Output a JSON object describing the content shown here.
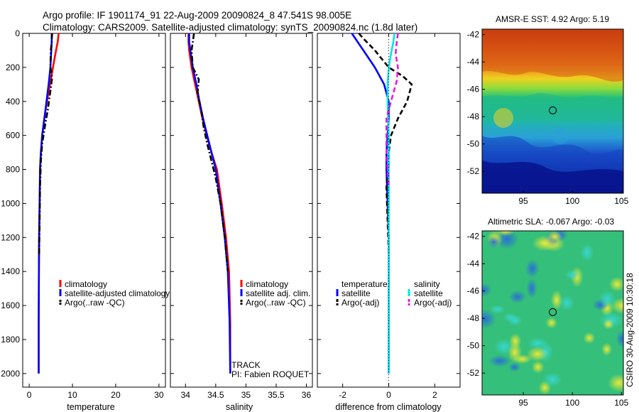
{
  "figure": {
    "title_line1": "Argo profile: IF 1901174_91 22-Aug-2009 20090824_8 47.541S 98.005E",
    "title_line2": "Climatology: CARS2009. Satellite-adjusted climatology: synTS_20090824.nc (1.8d later)",
    "side_label": "CSIRO 30-Aug-2009 10:30:18",
    "track_label": "TRACK",
    "pi_label": "PI: Fabien ROQUET"
  },
  "colors": {
    "climatology": "#ff0000",
    "satellite": "#0000ff",
    "argo": "#000000",
    "sal_satellite": "#00e5e5",
    "sal_argo": "#e619e6"
  },
  "chart_data": [
    {
      "type": "line",
      "id": "temperature",
      "xlabel": "temperature",
      "xlim": [
        -1.5,
        31.5
      ],
      "ylim": [
        0,
        2080
      ],
      "y_reversed": true,
      "xticks": [
        0,
        10,
        20,
        30
      ],
      "yticks": [
        0,
        200,
        400,
        600,
        800,
        1000,
        1200,
        1400,
        1600,
        1800,
        2000
      ],
      "legend": [
        "climatology",
        "satellite-adjusted climatology",
        "Argo(..raw -QC)"
      ],
      "series": [
        {
          "name": "climatology",
          "color_key": "climatology",
          "dash": "solid",
          "x": [
            6.8,
            6.6,
            6.2,
            5.5,
            4.8,
            4.1,
            3.5,
            3.0,
            2.7,
            2.5,
            2.4,
            2.3,
            2.25,
            2.2,
            2.2
          ],
          "y": [
            0,
            50,
            100,
            200,
            300,
            400,
            500,
            600,
            700,
            800,
            1000,
            1200,
            1400,
            1700,
            2000
          ]
        },
        {
          "name": "satellite-adjusted climatology",
          "color_key": "satellite",
          "dash": "solid",
          "x": [
            5.2,
            5.2,
            5.1,
            4.9,
            4.5,
            4.0,
            3.5,
            3.0,
            2.7,
            2.5,
            2.4,
            2.3,
            2.25,
            2.2,
            2.2
          ],
          "y": [
            0,
            50,
            100,
            200,
            300,
            400,
            500,
            600,
            700,
            800,
            1000,
            1200,
            1400,
            1700,
            2000
          ]
        },
        {
          "name": "Argo(..raw -QC)",
          "color_key": "argo",
          "dash": "dashdot",
          "x": [
            5.3,
            5.2,
            5.0,
            4.9,
            5.3,
            5.0,
            4.3,
            3.6,
            3.0,
            2.7,
            2.5,
            2.4,
            2.3
          ],
          "y": [
            0,
            50,
            100,
            200,
            260,
            320,
            450,
            550,
            650,
            750,
            900,
            1100,
            1300
          ]
        }
      ]
    },
    {
      "type": "line",
      "id": "salinity",
      "xlabel": "salinity",
      "xlim": [
        33.75,
        36.1
      ],
      "ylim": [
        0,
        2080
      ],
      "y_reversed": true,
      "xticks": [
        34,
        34.5,
        35,
        35.5,
        36
      ],
      "legend": [
        "climatology",
        "satellite adj. clim.",
        "Argo(..raw -QC)"
      ],
      "series": [
        {
          "name": "climatology",
          "color_key": "climatology",
          "dash": "solid",
          "x": [
            34.05,
            34.05,
            34.06,
            34.1,
            34.16,
            34.22,
            34.28,
            34.35,
            34.43,
            34.52,
            34.6,
            34.67,
            34.72,
            34.74,
            34.74
          ],
          "y": [
            0,
            50,
            100,
            200,
            300,
            400,
            500,
            600,
            700,
            800,
            1000,
            1200,
            1400,
            1700,
            2000
          ]
        },
        {
          "name": "satellite adj. clim.",
          "color_key": "satellite",
          "dash": "solid",
          "x": [
            34.06,
            34.06,
            34.08,
            34.12,
            34.18,
            34.23,
            34.29,
            34.36,
            34.43,
            34.5,
            34.58,
            34.65,
            34.7,
            34.73,
            34.74
          ],
          "y": [
            0,
            50,
            100,
            200,
            300,
            400,
            500,
            600,
            700,
            800,
            1000,
            1200,
            1400,
            1700,
            2000
          ]
        },
        {
          "name": "Argo(..raw -QC)",
          "color_key": "argo",
          "dash": "dashdot",
          "x": [
            34.14,
            34.12,
            34.1,
            34.12,
            34.22,
            34.2,
            34.26,
            34.3,
            34.36,
            34.43,
            34.5,
            34.58,
            34.65,
            34.7
          ],
          "y": [
            0,
            50,
            100,
            200,
            270,
            350,
            450,
            550,
            650,
            750,
            850,
            1000,
            1200,
            1400
          ]
        }
      ]
    },
    {
      "type": "line",
      "id": "difference",
      "xlabel": "difference from climatology",
      "xlim": [
        -3.1,
        3.1
      ],
      "ylim": [
        0,
        2080
      ],
      "y_reversed": true,
      "xticks": [
        -2,
        0,
        2
      ],
      "legend_titles": [
        "temperature",
        "salinity"
      ],
      "legend": [
        "satellite",
        "Argo(-adj)",
        "satellite",
        "Argo(-adj)"
      ],
      "series": [
        {
          "name": "temperature satellite",
          "color_key": "satellite",
          "dash": "solid",
          "x": [
            -1.6,
            -1.4,
            -1.1,
            -0.6,
            -0.2,
            0.0,
            0.0,
            -0.05,
            -0.1,
            -0.1,
            -0.05,
            0.0,
            0.0,
            0.0
          ],
          "y": [
            0,
            40,
            100,
            200,
            300,
            400,
            500,
            600,
            700,
            800,
            1000,
            1200,
            1400,
            2000
          ]
        },
        {
          "name": "temperature Argo(-adj)",
          "color_key": "argo",
          "dash": "dashed",
          "x": [
            -1.3,
            -1.1,
            -0.6,
            0.0,
            0.6,
            1.0,
            0.8,
            0.4,
            0.1,
            0.0,
            0.0,
            -0.1,
            -0.05,
            0.0
          ],
          "y": [
            0,
            30,
            100,
            200,
            250,
            300,
            400,
            500,
            600,
            700,
            800,
            900,
            1100,
            1300
          ]
        },
        {
          "name": "salinity satellite",
          "color_key": "sal_satellite",
          "dash": "solid",
          "x": [
            0.25,
            0.2,
            0.1,
            0.0,
            -0.05,
            -0.05,
            0.0,
            0.0,
            0.0,
            0.0,
            0.0
          ],
          "y": [
            0,
            50,
            120,
            200,
            300,
            400,
            600,
            800,
            1000,
            1400,
            2000
          ]
        },
        {
          "name": "salinity Argo(-adj)",
          "color_key": "sal_argo",
          "dash": "dashed",
          "x": [
            0.4,
            0.35,
            0.3,
            0.4,
            0.35,
            0.1,
            -0.1,
            -0.1,
            -0.05,
            0.0
          ],
          "y": [
            0,
            50,
            120,
            200,
            280,
            400,
            500,
            700,
            800,
            900
          ]
        }
      ]
    },
    {
      "type": "heatmap",
      "id": "sst_map",
      "title": "AMSR-E SST: 4.92 Argo: 5.19",
      "xlim": [
        90.8,
        105.2
      ],
      "ylim": [
        -53.6,
        -41.6
      ],
      "xticks": [
        95,
        100,
        105
      ],
      "yticks": [
        -42,
        -44,
        -46,
        -48,
        -50,
        -52
      ],
      "marker": {
        "lon": 98.005,
        "lat": -47.541
      }
    },
    {
      "type": "heatmap",
      "id": "sla_map",
      "title": "Altimetric SLA: -0.067 Argo: -0.03",
      "xlim": [
        90.8,
        105.2
      ],
      "ylim": [
        -53.6,
        -41.6
      ],
      "xticks": [
        95,
        100,
        105
      ],
      "yticks": [
        -42,
        -44,
        -46,
        -48,
        -50,
        -52
      ],
      "marker": {
        "lon": 98.005,
        "lat": -47.541
      }
    }
  ]
}
